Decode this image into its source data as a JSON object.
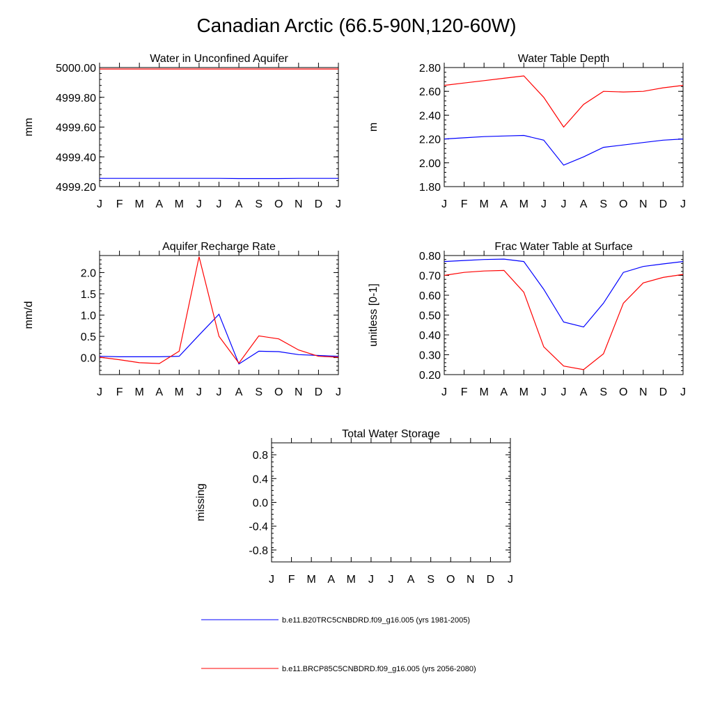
{
  "page": {
    "title": "Canadian Arctic (66.5-90N,120-60W)"
  },
  "colors": {
    "series1": "#0000ff",
    "series2": "#ff0000",
    "axis": "#000000"
  },
  "legend": [
    {
      "label": "b.e11.B20TRC5CNBDRD.f09_g16.005 (yrs 1981-2005)",
      "color": "#0000ff"
    },
    {
      "label": "b.e11.BRCP85C5CNBDRD.f09_g16.005 (yrs 2056-2080)",
      "color": "#ff0000"
    }
  ],
  "chart_data": [
    {
      "id": "aquifer",
      "type": "line",
      "title": "Water in Unconfined Aquifer",
      "xlabel": "",
      "ylabel": "mm",
      "categories": [
        "J",
        "F",
        "M",
        "A",
        "M",
        "J",
        "J",
        "A",
        "S",
        "O",
        "N",
        "D",
        "J"
      ],
      "ylim": [
        4999.2,
        5000.0
      ],
      "yticks": [
        4999.2,
        4999.4,
        4999.6,
        4999.8,
        5000.0
      ],
      "ytick_labels": [
        "4999.20",
        "4999.40",
        "4999.60",
        "4999.80",
        "5000.00"
      ],
      "series": [
        {
          "name": "b.e11.B20TRC5CNBDRD.f09_g16.005 (yrs 1981-2005)",
          "color": "#0000ff",
          "values": [
            4999.255,
            4999.255,
            4999.255,
            4999.255,
            4999.255,
            4999.255,
            4999.255,
            4999.254,
            4999.254,
            4999.254,
            4999.255,
            4999.255,
            4999.255
          ]
        },
        {
          "name": "b.e11.BRCP85C5CNBDRD.f09_g16.005 (yrs 2056-2080)",
          "color": "#ff0000",
          "values": [
            4999.99,
            4999.99,
            4999.99,
            4999.99,
            4999.99,
            4999.99,
            4999.99,
            4999.99,
            4999.99,
            4999.99,
            4999.99,
            4999.99,
            4999.99
          ]
        }
      ]
    },
    {
      "id": "wtd",
      "type": "line",
      "title": "Water Table Depth",
      "xlabel": "",
      "ylabel": "m",
      "categories": [
        "J",
        "F",
        "M",
        "A",
        "M",
        "J",
        "J",
        "A",
        "S",
        "O",
        "N",
        "D",
        "J"
      ],
      "ylim": [
        1.8,
        2.8
      ],
      "yticks": [
        1.8,
        2.0,
        2.2,
        2.4,
        2.6,
        2.8
      ],
      "ytick_labels": [
        "1.80",
        "2.00",
        "2.20",
        "2.40",
        "2.60",
        "2.80"
      ],
      "series": [
        {
          "name": "b.e11.B20TRC5CNBDRD.f09_g16.005 (yrs 1981-2005)",
          "color": "#0000ff",
          "values": [
            2.2,
            2.21,
            2.22,
            2.225,
            2.23,
            2.19,
            1.98,
            2.05,
            2.13,
            2.15,
            2.17,
            2.19,
            2.2
          ]
        },
        {
          "name": "b.e11.BRCP85C5CNBDRD.f09_g16.005 (yrs 2056-2080)",
          "color": "#ff0000",
          "values": [
            2.65,
            2.67,
            2.69,
            2.71,
            2.73,
            2.55,
            2.3,
            2.49,
            2.6,
            2.595,
            2.6,
            2.63,
            2.65
          ]
        }
      ]
    },
    {
      "id": "recharge",
      "type": "line",
      "title": "Aquifer Recharge Rate",
      "xlabel": "",
      "ylabel": "mm/d",
      "categories": [
        "J",
        "F",
        "M",
        "A",
        "M",
        "J",
        "J",
        "A",
        "S",
        "O",
        "N",
        "D",
        "J"
      ],
      "ylim": [
        -0.4,
        2.4
      ],
      "yticks": [
        0.0,
        0.5,
        1.0,
        1.5,
        2.0
      ],
      "ytick_labels": [
        "0.0",
        "0.5",
        "1.0",
        "1.5",
        "2.0"
      ],
      "series": [
        {
          "name": "b.e11.B20TRC5CNBDRD.f09_g16.005 (yrs 1981-2005)",
          "color": "#0000ff",
          "values": [
            0.03,
            0.02,
            0.02,
            0.02,
            0.03,
            0.53,
            1.02,
            -0.15,
            0.15,
            0.14,
            0.07,
            0.05,
            0.03
          ]
        },
        {
          "name": "b.e11.BRCP85C5CNBDRD.f09_g16.005 (yrs 2056-2080)",
          "color": "#ff0000",
          "values": [
            0.01,
            -0.05,
            -0.12,
            -0.14,
            0.15,
            2.37,
            0.5,
            -0.13,
            0.51,
            0.44,
            0.18,
            0.03,
            0.01
          ]
        }
      ]
    },
    {
      "id": "fracwt",
      "type": "line",
      "title": "Frac Water Table at Surface",
      "xlabel": "",
      "ylabel": "unitless [0-1]",
      "categories": [
        "J",
        "F",
        "M",
        "A",
        "M",
        "J",
        "J",
        "A",
        "S",
        "O",
        "N",
        "D",
        "J"
      ],
      "ylim": [
        0.2,
        0.8
      ],
      "yticks": [
        0.2,
        0.3,
        0.4,
        0.5,
        0.6,
        0.7,
        0.8
      ],
      "ytick_labels": [
        "0.20",
        "0.30",
        "0.40",
        "0.50",
        "0.60",
        "0.70",
        "0.80"
      ],
      "series": [
        {
          "name": "b.e11.B20TRC5CNBDRD.f09_g16.005 (yrs 1981-2005)",
          "color": "#0000ff",
          "values": [
            0.77,
            0.775,
            0.78,
            0.782,
            0.77,
            0.63,
            0.465,
            0.44,
            0.56,
            0.715,
            0.745,
            0.758,
            0.77
          ]
        },
        {
          "name": "b.e11.BRCP85C5CNBDRD.f09_g16.005 (yrs 2056-2080)",
          "color": "#ff0000",
          "values": [
            0.7,
            0.715,
            0.722,
            0.725,
            0.615,
            0.34,
            0.243,
            0.225,
            0.305,
            0.56,
            0.662,
            0.69,
            0.705
          ]
        }
      ]
    },
    {
      "id": "tws",
      "type": "line",
      "title": "Total Water Storage",
      "xlabel": "",
      "ylabel": "missing",
      "categories": [
        "J",
        "F",
        "M",
        "A",
        "M",
        "J",
        "J",
        "A",
        "S",
        "O",
        "N",
        "D",
        "J"
      ],
      "ylim": [
        -1.0,
        1.0
      ],
      "yticks": [
        -0.8,
        -0.4,
        0.0,
        0.4,
        0.8
      ],
      "ytick_labels": [
        "-0.8",
        "-0.4",
        "0.0",
        "0.4",
        "0.8"
      ],
      "series": []
    }
  ]
}
